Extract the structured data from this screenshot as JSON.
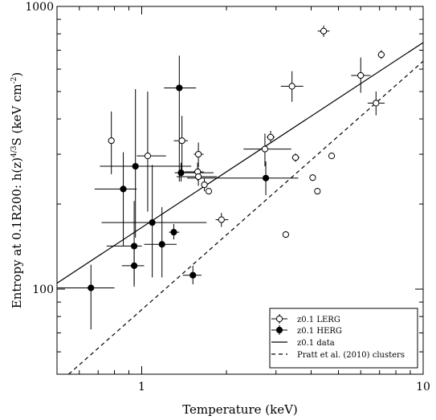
{
  "chart_data": {
    "type": "scatter",
    "xscale": "log",
    "yscale": "log",
    "xlim": [
      0.5,
      10
    ],
    "ylim": [
      50,
      1000
    ],
    "xlabel": "Temperature (keV)",
    "ylabel": "Entropy at 0.1R200: h(z)",
    "ylabel_sup": "4/3",
    "ylabel_unit": "S (keV cm",
    "ylabel_unit_sup": "-2",
    "ylabel_end": ")",
    "x_ticks": [
      {
        "value": 1,
        "label": "1"
      },
      {
        "value": 10,
        "label": "10"
      }
    ],
    "y_ticks": [
      {
        "value": 100,
        "label": "100"
      },
      {
        "value": 1000,
        "label": "1000"
      }
    ],
    "legend": {
      "position": "bottom-right",
      "entries": [
        {
          "label": "z0.1 LERG",
          "kind": "open-point"
        },
        {
          "label": "z0.1 HERG",
          "kind": "filled-point"
        },
        {
          "label": "z0.1 data",
          "kind": "solid-line"
        },
        {
          "label": "Pratt et al. (2010) clusters",
          "kind": "dashed-line"
        }
      ]
    },
    "series": [
      {
        "name": "z0.1 LERG",
        "marker": "open",
        "points": [
          {
            "x": 0.78,
            "y": 335,
            "xerr": [
              0.76,
              0.8
            ],
            "yerr": [
              255,
              425
            ]
          },
          {
            "x": 1.05,
            "y": 296,
            "xerr": [
              0.96,
              1.22
            ],
            "yerr": [
              188,
              500
            ]
          },
          {
            "x": 1.39,
            "y": 335,
            "xerr": [
              1.3,
              1.46
            ],
            "yerr": [
              263,
              410
            ]
          },
          {
            "x": 1.59,
            "y": 300,
            "xerr": [
              1.53,
              1.66
            ],
            "yerr": [
              270,
              330
            ]
          },
          {
            "x": 1.58,
            "y": 260,
            "xerr": [
              1.42,
              1.66
            ],
            "yerr": [
              242,
              280
            ]
          },
          {
            "x": 1.59,
            "y": 250,
            "xerr": [
              1.33,
              1.85
            ],
            "yerr": [
              232,
              268
            ]
          },
          {
            "x": 1.67,
            "y": 234,
            "xerr": [
              1.63,
              1.71
            ],
            "yerr": [
              222,
              246
            ]
          },
          {
            "x": 1.73,
            "y": 222
          },
          {
            "x": 1.92,
            "y": 176,
            "xerr": [
              1.83,
              2.03
            ],
            "yerr": [
              166,
              186
            ]
          },
          {
            "x": 2.74,
            "y": 313,
            "xerr": [
              2.3,
              3.4
            ],
            "yerr": [
              272,
              355
            ]
          },
          {
            "x": 2.87,
            "y": 345,
            "xerr": [
              2.78,
              2.97
            ],
            "yerr": [
              328,
              363
            ]
          },
          {
            "x": 3.25,
            "y": 156
          },
          {
            "x": 3.42,
            "y": 522,
            "xerr": [
              3.12,
              3.75
            ],
            "yerr": [
              460,
              590
            ]
          },
          {
            "x": 3.52,
            "y": 292,
            "xerr": [
              3.42,
              3.63
            ],
            "yerr": [
              282,
              302
            ]
          },
          {
            "x": 4.05,
            "y": 248
          },
          {
            "x": 4.21,
            "y": 222
          },
          {
            "x": 4.43,
            "y": 818,
            "xerr": [
              4.22,
              4.65
            ],
            "yerr": [
              780,
              856
            ]
          },
          {
            "x": 4.73,
            "y": 296
          },
          {
            "x": 6.0,
            "y": 570,
            "xerr": [
              5.55,
              6.5
            ],
            "yerr": [
              495,
              660
            ]
          },
          {
            "x": 6.8,
            "y": 455,
            "xerr": [
              6.35,
              7.3
            ],
            "yerr": [
              412,
              500
            ]
          },
          {
            "x": 7.1,
            "y": 675,
            "xerr": [
              6.9,
              7.3
            ],
            "yerr": [
              652,
              700
            ]
          }
        ]
      },
      {
        "name": "z0.1 HERG",
        "marker": "filled",
        "points": [
          {
            "x": 0.66,
            "y": 101,
            "xerr": [
              0.5,
              0.8
            ],
            "yerr": [
              72,
              122
            ]
          },
          {
            "x": 0.86,
            "y": 226,
            "xerr": [
              0.68,
              0.96
            ],
            "yerr": [
              142,
              305
            ]
          },
          {
            "x": 0.95,
            "y": 272,
            "xerr": [
              0.71,
              1.5
            ],
            "yerr": [
              152,
              510
            ]
          },
          {
            "x": 0.94,
            "y": 142,
            "xerr": [
              0.75,
              1.0
            ],
            "yerr": [
              102,
              205
            ]
          },
          {
            "x": 0.94,
            "y": 121,
            "xerr": [
              0.85,
              1.02
            ],
            "yerr": [
              104,
              142
            ]
          },
          {
            "x": 1.09,
            "y": 172,
            "xerr": [
              0.72,
              1.7
            ],
            "yerr": [
              110,
              275
            ]
          },
          {
            "x": 1.18,
            "y": 144,
            "xerr": [
              1.02,
              1.33
            ],
            "yerr": [
              110,
              195
            ]
          },
          {
            "x": 1.3,
            "y": 159,
            "xerr": [
              1.25,
              1.36
            ],
            "yerr": [
              150,
              170
            ]
          },
          {
            "x": 1.36,
            "y": 515,
            "xerr": [
              1.2,
              1.56
            ],
            "yerr": [
              240,
              670
            ]
          },
          {
            "x": 1.38,
            "y": 258,
            "xerr": [
              1.31,
              1.8
            ],
            "yerr": [
              240,
              280
            ]
          },
          {
            "x": 1.52,
            "y": 112,
            "xerr": [
              1.4,
              1.63
            ],
            "yerr": [
              104,
              121
            ]
          },
          {
            "x": 2.76,
            "y": 247,
            "xerr": [
              1.45,
              3.6
            ],
            "yerr": [
              215,
              283
            ]
          }
        ]
      },
      {
        "name": "z0.1 data",
        "kind": "line",
        "style": "solid",
        "points": [
          {
            "x": 0.5,
            "y": 105
          },
          {
            "x": 10,
            "y": 745
          }
        ]
      },
      {
        "name": "Pratt et al. (2010) clusters",
        "kind": "line",
        "style": "dashed",
        "points": [
          {
            "x": 0.55,
            "y": 50
          },
          {
            "x": 10,
            "y": 640
          }
        ]
      }
    ]
  }
}
